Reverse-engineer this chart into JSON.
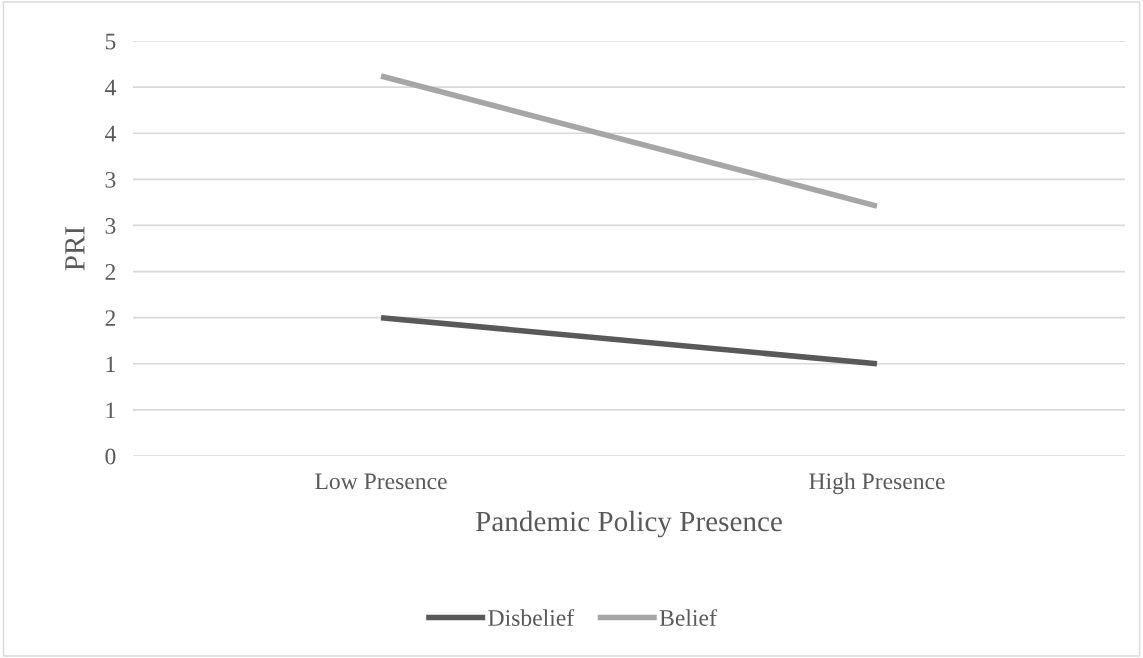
{
  "chart_data": {
    "type": "line",
    "xlabel": "Pandemic Policy Presence",
    "ylabel": "PRI",
    "categories": [
      "Low Presence",
      "High Presence"
    ],
    "series": [
      {
        "name": "Disbelief",
        "color": "#595959",
        "values": [
          1.5,
          1.0
        ]
      },
      {
        "name": "Belief",
        "color": "#a6a6a6",
        "values": [
          4.12,
          2.71
        ]
      }
    ],
    "ylim": [
      0,
      4.5
    ],
    "yticks": [
      0,
      {
        "value": 0.5,
        "label": "1"
      },
      1,
      {
        "value": 1.5,
        "label": "2"
      },
      2,
      {
        "value": 2.5,
        "label": "3"
      },
      3,
      {
        "value": 3.5,
        "label": "4"
      },
      4,
      {
        "value": 4.5,
        "label": "5"
      }
    ],
    "grid": "y",
    "legend": "bottom",
    "marker": "none",
    "line_style": "solid"
  }
}
